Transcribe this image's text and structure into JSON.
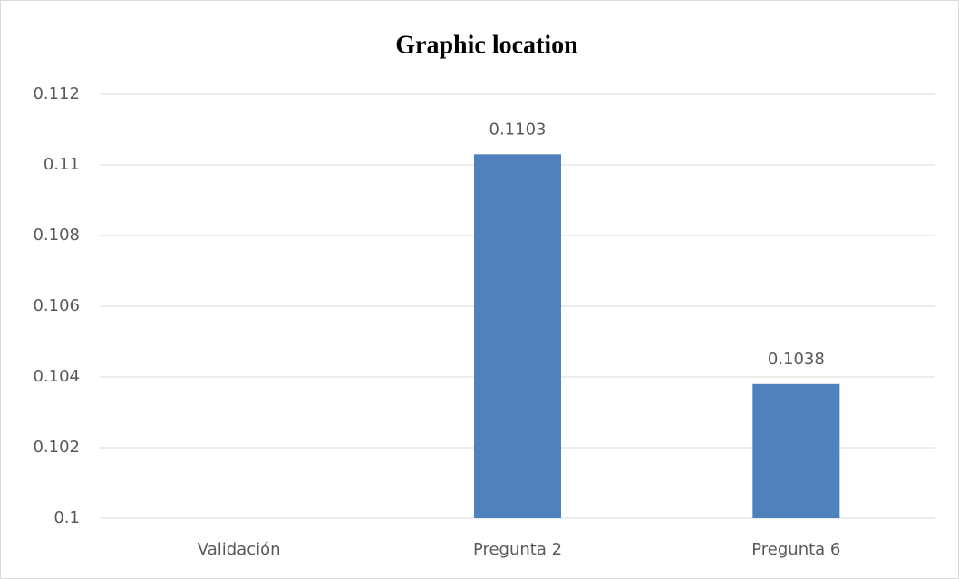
{
  "chart_data": {
    "type": "bar",
    "title": "Graphic location",
    "categories": [
      "Validación",
      "Pregunta 2",
      "Pregunta 6"
    ],
    "values": [
      null,
      0.1103,
      0.1038
    ],
    "color": "#4f81bd",
    "ylim": [
      0.1,
      0.112
    ],
    "yticks": [
      0.1,
      0.102,
      0.104,
      0.106,
      0.108,
      0.11,
      0.112
    ],
    "grid": true
  }
}
